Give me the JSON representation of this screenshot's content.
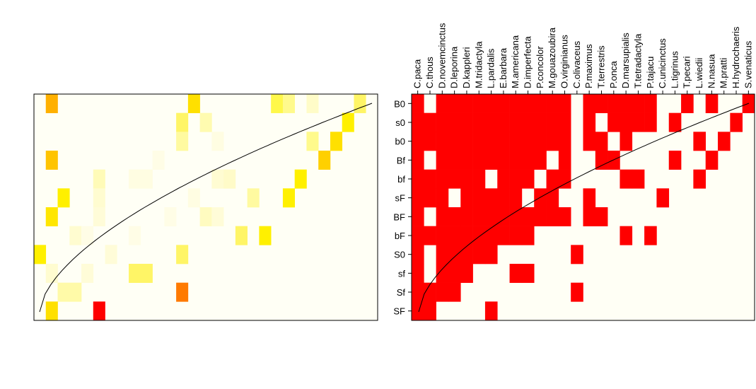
{
  "chart_data": [
    {
      "type": "heatmap",
      "rows": [
        "B0",
        "s0",
        "b0",
        "Bf",
        "bf",
        "sF",
        "BF",
        "bF",
        "S0",
        "sf",
        "Sf",
        "SF"
      ],
      "n_cols": 29,
      "cells": [
        [
          0,
          0,
          0,
          0,
          0,
          0,
          0,
          0,
          0,
          0,
          0,
          0,
          0,
          0,
          0,
          0,
          0,
          0,
          0,
          0,
          0,
          0,
          0,
          0,
          0,
          0,
          0,
          0,
          0
        ],
        [
          0,
          0,
          0,
          0,
          0,
          0,
          0,
          0,
          0,
          0,
          0,
          0,
          0,
          0,
          0,
          0,
          0,
          0,
          0,
          0,
          0,
          0,
          0,
          0,
          0,
          0,
          0,
          0,
          0
        ],
        [
          0,
          0,
          0,
          0,
          0,
          0,
          0,
          0,
          0,
          0,
          0,
          0,
          0,
          0,
          0,
          0,
          0,
          0,
          0,
          0,
          0,
          0,
          0,
          0,
          0,
          0,
          0,
          0,
          0
        ],
        [
          0,
          0,
          0,
          0,
          0,
          0,
          0,
          0,
          0,
          0,
          0,
          0,
          0,
          0,
          0,
          0,
          0,
          0,
          0,
          0,
          0,
          0,
          0,
          0,
          0,
          0,
          0,
          0,
          0
        ],
        [
          0,
          0,
          0,
          0,
          0,
          0,
          0,
          0,
          0,
          0,
          0,
          0,
          0,
          0,
          0,
          0,
          0,
          0,
          0,
          0,
          0,
          0,
          0,
          0,
          0,
          0,
          0,
          0,
          0
        ],
        [
          0,
          0,
          0,
          0,
          0,
          0,
          0,
          0,
          0,
          0,
          0,
          0,
          0,
          0,
          0,
          0,
          0,
          0,
          0,
          0,
          0,
          0,
          0,
          0,
          0,
          0,
          0,
          0,
          0
        ],
        [
          0,
          0,
          0,
          0,
          0,
          0,
          0,
          0,
          0,
          0,
          0,
          0,
          0,
          0,
          0,
          0,
          0,
          0,
          0,
          0,
          0,
          0,
          0,
          0,
          0,
          0,
          0,
          0,
          0
        ],
        [
          0,
          0,
          0,
          0,
          0,
          0,
          0,
          0,
          0,
          0,
          0,
          0,
          0,
          0,
          0,
          0,
          0,
          0,
          0,
          0,
          0,
          0,
          0,
          0,
          0,
          0,
          0,
          0,
          0
        ],
        [
          0,
          0,
          0,
          0,
          0,
          0,
          0,
          0,
          0,
          0,
          0,
          0,
          0,
          0,
          0,
          0,
          0,
          0,
          0,
          0,
          0,
          0,
          0,
          0,
          0,
          0,
          0,
          0,
          0
        ],
        [
          0,
          0,
          0,
          0,
          0,
          0,
          0,
          0,
          0,
          0,
          0,
          0,
          0,
          0,
          0,
          0,
          0,
          0,
          0,
          0,
          0,
          0,
          0,
          0,
          0,
          0,
          0,
          0,
          0
        ],
        [
          0,
          0,
          0,
          0,
          0,
          0,
          0,
          0,
          0,
          0,
          0,
          0,
          0,
          0,
          0,
          0,
          0,
          0,
          0,
          0,
          0,
          0,
          0,
          0,
          0,
          0,
          0,
          0,
          0
        ],
        [
          0,
          0,
          0,
          0,
          0,
          0,
          0,
          0,
          0,
          0,
          0,
          0,
          0,
          0,
          0,
          0,
          0,
          0,
          0,
          0,
          0,
          0,
          0,
          0,
          0,
          0,
          0,
          0,
          0
        ]
      ],
      "colored_cells": [
        {
          "row": 0,
          "col": 1,
          "color": "#FFB000"
        },
        {
          "row": 0,
          "col": 13,
          "color": "#FFE000"
        },
        {
          "row": 0,
          "col": 20,
          "color": "#FFF84A"
        },
        {
          "row": 0,
          "col": 21,
          "color": "#FFFA8C"
        },
        {
          "row": 0,
          "col": 23,
          "color": "#FFFCC8"
        },
        {
          "row": 0,
          "col": 27,
          "color": "#FFF566"
        },
        {
          "row": 1,
          "col": 12,
          "color": "#FFF566"
        },
        {
          "row": 1,
          "col": 14,
          "color": "#FFFBB0"
        },
        {
          "row": 1,
          "col": 26,
          "color": "#FFF000"
        },
        {
          "row": 2,
          "col": 12,
          "color": "#FFFAA0"
        },
        {
          "row": 2,
          "col": 15,
          "color": "#FFFDE2"
        },
        {
          "row": 2,
          "col": 23,
          "color": "#FFFA8C"
        },
        {
          "row": 2,
          "col": 25,
          "color": "#FFE000"
        },
        {
          "row": 3,
          "col": 1,
          "color": "#FFC400"
        },
        {
          "row": 3,
          "col": 10,
          "color": "#FFFDE6"
        },
        {
          "row": 3,
          "col": 24,
          "color": "#FFD000"
        },
        {
          "row": 4,
          "col": 5,
          "color": "#FFFBB8"
        },
        {
          "row": 4,
          "col": 8,
          "color": "#FFFDE2"
        },
        {
          "row": 4,
          "col": 9,
          "color": "#FFFDE2"
        },
        {
          "row": 4,
          "col": 15,
          "color": "#FFFCD2"
        },
        {
          "row": 4,
          "col": 16,
          "color": "#FFFBC8"
        },
        {
          "row": 4,
          "col": 22,
          "color": "#FFF000"
        },
        {
          "row": 5,
          "col": 2,
          "color": "#FFF000"
        },
        {
          "row": 5,
          "col": 5,
          "color": "#FFFCD0"
        },
        {
          "row": 5,
          "col": 13,
          "color": "#FFFDE2"
        },
        {
          "row": 5,
          "col": 18,
          "color": "#FFFAA0"
        },
        {
          "row": 5,
          "col": 21,
          "color": "#FFF000"
        },
        {
          "row": 6,
          "col": 1,
          "color": "#FFE600"
        },
        {
          "row": 6,
          "col": 5,
          "color": "#FFFCD8"
        },
        {
          "row": 6,
          "col": 11,
          "color": "#FFFDE6"
        },
        {
          "row": 6,
          "col": 14,
          "color": "#FFFBC0"
        },
        {
          "row": 6,
          "col": 15,
          "color": "#FFFCD8"
        },
        {
          "row": 7,
          "col": 3,
          "color": "#FFFCD0"
        },
        {
          "row": 7,
          "col": 4,
          "color": "#FFFDE6"
        },
        {
          "row": 7,
          "col": 8,
          "color": "#FFFDE6"
        },
        {
          "row": 7,
          "col": 17,
          "color": "#FFF566"
        },
        {
          "row": 7,
          "col": 19,
          "color": "#FFF000"
        },
        {
          "row": 8,
          "col": 0,
          "color": "#FFF000"
        },
        {
          "row": 8,
          "col": 6,
          "color": "#FFFCD8"
        },
        {
          "row": 8,
          "col": 12,
          "color": "#FFF566"
        },
        {
          "row": 9,
          "col": 1,
          "color": "#FFFCD0"
        },
        {
          "row": 9,
          "col": 4,
          "color": "#FFFCD8"
        },
        {
          "row": 9,
          "col": 8,
          "color": "#FFF566"
        },
        {
          "row": 9,
          "col": 9,
          "color": "#FFF566"
        },
        {
          "row": 10,
          "col": 2,
          "color": "#FFFAA8"
        },
        {
          "row": 10,
          "col": 3,
          "color": "#FFFAA8"
        },
        {
          "row": 10,
          "col": 12,
          "color": "#FF7A00"
        },
        {
          "row": 11,
          "col": 1,
          "color": "#FFE000"
        },
        {
          "row": 11,
          "col": 5,
          "color": "#FF0000"
        }
      ],
      "background_color": "#FFFFF5",
      "curve": "black line from bottom-left to top-right"
    },
    {
      "type": "heatmap",
      "rows": [
        "B0",
        "s0",
        "b0",
        "Bf",
        "bf",
        "sF",
        "BF",
        "bF",
        "S0",
        "sf",
        "Sf",
        "SF"
      ],
      "columns": [
        "C.paca",
        "C.thous",
        "D.novemcinctus",
        "D.leporina",
        "D.kappleri",
        "M.tridactyla",
        "L.pardalis",
        "E.barbara",
        "M.americana",
        "D.imperfecta",
        "P.concolor",
        "M.gouazoubira",
        "O.virginianus",
        "C.olivaceus",
        "P.maximus",
        "T.terrestris",
        "P.onca",
        "D.marsupialis",
        "T.tetradactyla",
        "P.tajacu",
        "C.unicinctus",
        "L.tigrinus",
        "T.pecari",
        "L.wiedii",
        "N.nasua",
        "M.pratti",
        "H.hydrochaeris",
        "S.venaticus"
      ],
      "presence": [
        [
          1,
          0,
          1,
          1,
          1,
          1,
          1,
          1,
          1,
          1,
          1,
          1,
          1,
          0,
          1,
          1,
          1,
          1,
          1,
          1,
          0,
          0,
          1,
          0,
          1,
          0,
          0,
          1
        ],
        [
          1,
          1,
          1,
          1,
          1,
          1,
          1,
          1,
          1,
          1,
          1,
          1,
          1,
          0,
          1,
          0,
          1,
          1,
          1,
          1,
          0,
          1,
          0,
          0,
          0,
          0,
          1,
          0
        ],
        [
          1,
          1,
          1,
          1,
          1,
          1,
          1,
          1,
          1,
          1,
          1,
          1,
          1,
          0,
          1,
          1,
          0,
          1,
          0,
          0,
          0,
          0,
          0,
          1,
          0,
          1,
          0,
          0
        ],
        [
          1,
          0,
          1,
          1,
          1,
          1,
          1,
          1,
          1,
          1,
          1,
          0,
          1,
          0,
          0,
          1,
          1,
          0,
          0,
          0,
          0,
          1,
          0,
          0,
          1,
          0,
          0,
          0
        ],
        [
          1,
          1,
          1,
          1,
          1,
          1,
          0,
          1,
          1,
          1,
          0,
          1,
          1,
          0,
          0,
          0,
          0,
          1,
          1,
          0,
          0,
          0,
          0,
          1,
          0,
          0,
          0,
          0
        ],
        [
          1,
          1,
          1,
          0,
          1,
          1,
          1,
          1,
          1,
          0,
          1,
          1,
          0,
          0,
          1,
          0,
          0,
          0,
          0,
          0,
          1,
          0,
          0,
          0,
          0,
          0,
          0,
          0
        ],
        [
          1,
          0,
          1,
          1,
          1,
          1,
          1,
          1,
          1,
          1,
          1,
          1,
          1,
          0,
          1,
          1,
          0,
          0,
          0,
          0,
          0,
          0,
          0,
          0,
          0,
          0,
          0,
          0
        ],
        [
          1,
          1,
          1,
          1,
          1,
          1,
          1,
          1,
          1,
          1,
          0,
          0,
          0,
          0,
          0,
          0,
          0,
          1,
          0,
          1,
          0,
          0,
          0,
          0,
          0,
          0,
          0,
          0
        ],
        [
          1,
          0,
          1,
          1,
          1,
          1,
          1,
          0,
          0,
          0,
          0,
          0,
          0,
          1,
          0,
          0,
          0,
          0,
          0,
          0,
          0,
          0,
          0,
          0,
          0,
          0,
          0,
          0
        ],
        [
          1,
          0,
          1,
          1,
          1,
          0,
          0,
          0,
          1,
          1,
          0,
          0,
          0,
          0,
          0,
          0,
          0,
          0,
          0,
          0,
          0,
          0,
          0,
          0,
          0,
          0,
          0,
          0
        ],
        [
          1,
          1,
          1,
          1,
          0,
          0,
          0,
          0,
          0,
          0,
          0,
          0,
          0,
          1,
          0,
          0,
          0,
          0,
          0,
          0,
          0,
          0,
          0,
          0,
          0,
          0,
          0,
          0
        ],
        [
          1,
          1,
          0,
          0,
          0,
          0,
          1,
          0,
          0,
          0,
          0,
          0,
          0,
          0,
          0,
          0,
          0,
          0,
          0,
          0,
          0,
          0,
          0,
          0,
          0,
          0,
          0,
          0
        ]
      ],
      "present_color": "#FF0000",
      "absent_color": "#FFFFF5",
      "curve": "black line from bottom-left to top-right"
    }
  ]
}
